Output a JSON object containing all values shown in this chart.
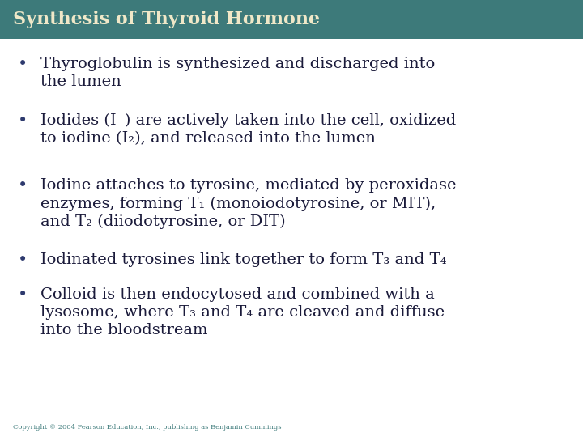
{
  "title": "Synthesis of Thyroid Hormone",
  "title_bg_color": "#3d7a7a",
  "title_text_color": "#f0e8c8",
  "body_bg_color": "#ffffff",
  "bullet_color": "#2e3a6e",
  "bullet_text_color": "#1a1a3a",
  "copyright_text": "Copyright © 2004 Pearson Education, Inc., publishing as Benjamin Cummings",
  "copyright_color": "#3d7a7a",
  "bullets": [
    "Thyroglobulin is synthesized and discharged into\nthe lumen",
    "Iodides (I⁻) are actively taken into the cell, oxidized\nto iodine (I₂), and released into the lumen",
    "Iodine attaches to tyrosine, mediated by peroxidase\nenzymes, forming T₁ (monoiodotyrosine, or MIT),\nand T₂ (diiodotyrosine, or DIT)",
    "Iodinated tyrosines link together to form T₃ and T₄",
    "Colloid is then endocytosed and combined with a\nlysosome, where T₃ and T₄ are cleaved and diffuse\ninto the bloodstream"
  ],
  "fig_width": 7.2,
  "fig_height": 5.4,
  "dpi": 100
}
